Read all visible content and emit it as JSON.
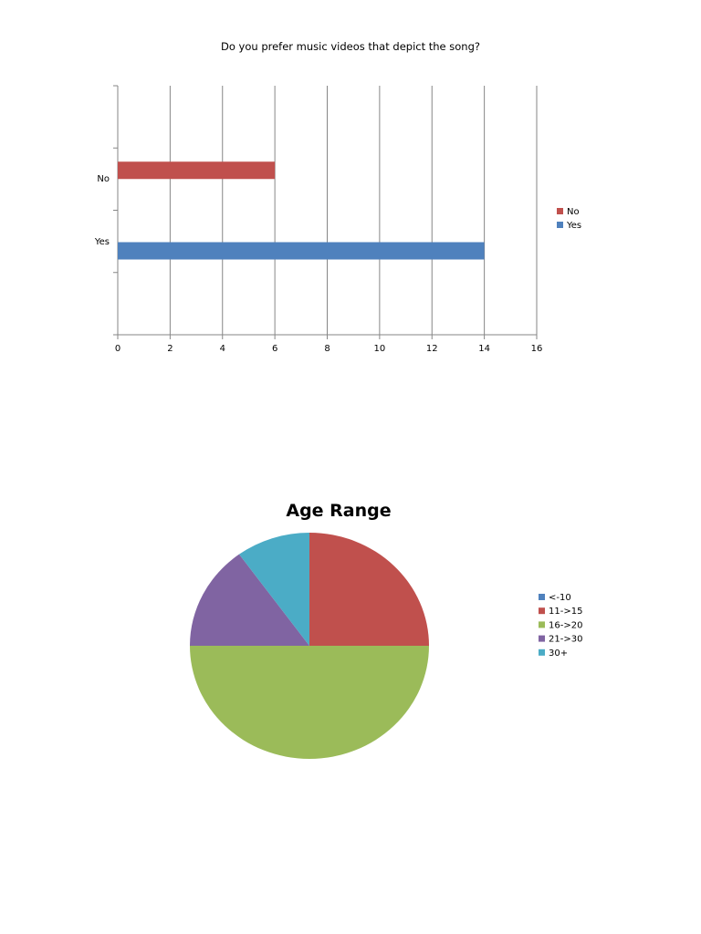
{
  "chart_data": [
    {
      "type": "bar",
      "orientation": "horizontal",
      "title": "Do you prefer music videos that depict the song?",
      "categories": [
        "No",
        "Yes"
      ],
      "values": [
        6,
        14
      ],
      "colors": [
        "#C0504D",
        "#4F81BD"
      ],
      "xlim": [
        0,
        16
      ],
      "xticks": [
        "0",
        "2",
        "4",
        "6",
        "8",
        "10",
        "12",
        "14",
        "16"
      ],
      "grid": "vertical",
      "legend": {
        "position": "right",
        "entries": [
          {
            "label": "No",
            "color": "#C0504D"
          },
          {
            "label": "Yes",
            "color": "#4F81BD"
          }
        ]
      }
    },
    {
      "type": "pie",
      "title": "Age Range",
      "slices": [
        {
          "label": "<-10",
          "value": 0,
          "color": "#4F81BD"
        },
        {
          "label": "11->15",
          "value": 5,
          "color": "#C0504D"
        },
        {
          "label": "16->20",
          "value": 10,
          "color": "#9BBB59"
        },
        {
          "label": "21->30",
          "value": 3,
          "color": "#8064A2"
        },
        {
          "label": "30+",
          "value": 2,
          "color": "#4BACC6"
        }
      ],
      "legend": {
        "position": "right"
      }
    }
  ]
}
